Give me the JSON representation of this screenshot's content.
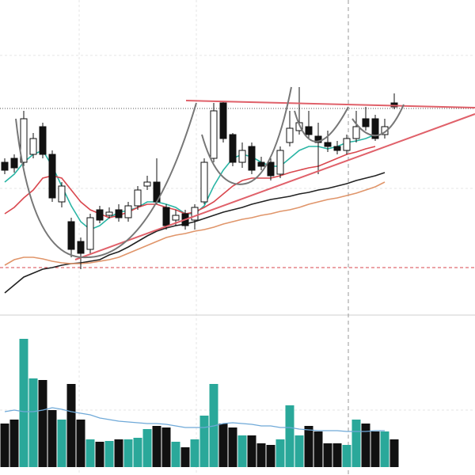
{
  "chart_data": {
    "type": "candlestick",
    "ylim": [
      220,
      600
    ],
    "open": [
      395,
      400,
      395,
      405,
      440,
      405,
      345,
      320,
      295,
      285,
      335,
      328,
      335,
      325,
      340,
      365,
      370,
      338,
      322,
      330,
      322,
      345,
      400,
      470,
      430,
      395,
      415,
      395,
      395,
      380,
      420,
      435,
      440,
      428,
      420,
      415,
      410,
      425,
      450,
      450,
      430,
      470
    ],
    "high": [
      400,
      405,
      460,
      432,
      445,
      410,
      370,
      325,
      300,
      330,
      340,
      338,
      342,
      345,
      365,
      378,
      400,
      342,
      335,
      335,
      342,
      400,
      470,
      472,
      432,
      420,
      420,
      402,
      400,
      415,
      460,
      490,
      460,
      445,
      435,
      422,
      430,
      460,
      465,
      455,
      450,
      482
    ],
    "low": [
      380,
      382,
      390,
      400,
      400,
      345,
      338,
      275,
      260,
      280,
      318,
      324,
      320,
      320,
      335,
      360,
      342,
      310,
      315,
      310,
      310,
      342,
      395,
      420,
      390,
      388,
      380,
      385,
      372,
      375,
      415,
      430,
      425,
      380,
      408,
      405,
      405,
      420,
      435,
      422,
      425,
      462
    ],
    "close": [
      385,
      388,
      450,
      425,
      405,
      350,
      365,
      285,
      280,
      325,
      322,
      332,
      325,
      340,
      360,
      370,
      345,
      315,
      328,
      315,
      338,
      395,
      460,
      425,
      395,
      410,
      385,
      390,
      378,
      410,
      438,
      445,
      430,
      420,
      415,
      410,
      425,
      440,
      440,
      425,
      440,
      465
    ],
    "up_color": "#ffffff",
    "down_color": "#111111",
    "series": [
      {
        "color": "#2bb5a5",
        "values": [
          370,
          380,
          395,
          405,
          410,
          390,
          365,
          340,
          320,
          310,
          315,
          325,
          332,
          334,
          338,
          345,
          345,
          342,
          338,
          330,
          330,
          340,
          365,
          385,
          400,
          405,
          402,
          395,
          390,
          390,
          400,
          410,
          415,
          415,
          412,
          415,
          420,
          422,
          425,
          430,
          null,
          null
        ]
      },
      {
        "color": "#d9474e",
        "values": [
          330,
          338,
          350,
          360,
          375,
          378,
          375,
          360,
          345,
          335,
          330,
          325,
          328,
          332,
          338,
          342,
          342,
          338,
          335,
          330,
          332,
          338,
          345,
          355,
          365,
          372,
          375,
          375,
          375,
          378,
          382,
          385,
          388,
          390,
          395,
          400,
          405,
          408,
          412,
          415,
          null,
          null
        ]
      },
      {
        "color": "#222222",
        "values": [
          230,
          240,
          250,
          255,
          260,
          262,
          265,
          267,
          268,
          270,
          272,
          278,
          282,
          288,
          295,
          302,
          308,
          312,
          315,
          317,
          320,
          324,
          328,
          332,
          335,
          338,
          342,
          345,
          348,
          350,
          352,
          355,
          357,
          360,
          362,
          365,
          368,
          372,
          375,
          378,
          382,
          null
        ]
      },
      {
        "color": "#e0956a",
        "values": [
          265,
          272,
          275,
          275,
          273,
          270,
          268,
          267,
          267,
          268,
          270,
          272,
          275,
          280,
          285,
          290,
          295,
          300,
          303,
          305,
          308,
          310,
          313,
          317,
          320,
          323,
          325,
          328,
          330,
          333,
          335,
          338,
          342,
          345,
          348,
          350,
          353,
          356,
          360,
          364,
          370,
          null
        ]
      }
    ],
    "volume": {
      "ylim": [
        0,
        170
      ],
      "up_color": "#2aa89a",
      "down_color": "#111111",
      "values": [
        55,
        60,
        162,
        112,
        110,
        72,
        60,
        105,
        60,
        35,
        32,
        33,
        35,
        35,
        37,
        48,
        52,
        50,
        32,
        25,
        35,
        65,
        105,
        55,
        50,
        40,
        40,
        30,
        28,
        35,
        78,
        40,
        52,
        45,
        30,
        30,
        28,
        60,
        55,
        45,
        45,
        35
      ],
      "ma": {
        "color": "#6fa9d8",
        "values": [
          70,
          72,
          70,
          70,
          72,
          75,
          73,
          70,
          68,
          66,
          62,
          60,
          58,
          57,
          56,
          55,
          55,
          54,
          52,
          50,
          50,
          50,
          52,
          55,
          56,
          55,
          54,
          52,
          52,
          50,
          50,
          48,
          47,
          46,
          46,
          46,
          45,
          45,
          45,
          46,
          46,
          null
        ]
      }
    }
  }
}
